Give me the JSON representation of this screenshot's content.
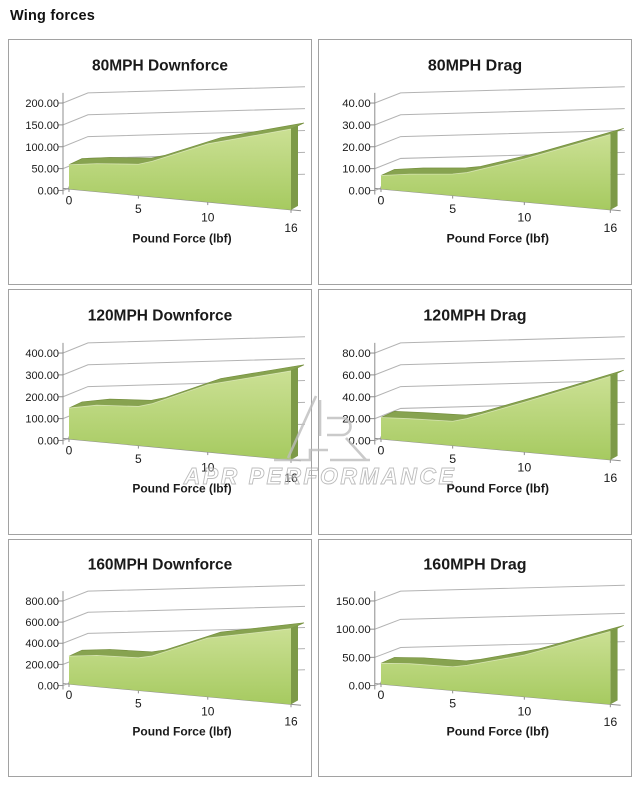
{
  "page": {
    "title": "Wing forces"
  },
  "watermark": {
    "text": "APR PERFORMANCE",
    "logo": "apr-performance-logo",
    "color": "#bdbdbd"
  },
  "colors": {
    "text": "#1a1a1a",
    "gridline": "#b3b3b3",
    "axis": "#8f8f8f",
    "panel_border": "#a2a2a2",
    "area_top": "#cbe094",
    "area_bottom": "#a6ca60",
    "ridge": "#87a350",
    "ridge_edge": "#76903f",
    "side": "#7d9a48",
    "crease": "#e3eec4",
    "watermark": "#b5b5b5"
  },
  "chart_data": [
    {
      "type": "area",
      "style": "3d-area",
      "grid": true,
      "legend": "none",
      "title": "80MPH Downforce",
      "xlabel": "Pound Force (lbf)",
      "xlim": [
        0,
        16
      ],
      "x_ticks": [
        0,
        5,
        10,
        16
      ],
      "ylim": [
        0,
        200
      ],
      "y_tick_step": 50,
      "y_tick_labels": [
        "0.00",
        "50.00",
        "100.00",
        "150.00",
        "200.00"
      ],
      "x": [
        0,
        2,
        5,
        6,
        10,
        16
      ],
      "values": [
        45,
        52,
        58,
        66,
        108,
        150
      ]
    },
    {
      "type": "area",
      "style": "3d-area",
      "grid": true,
      "legend": "none",
      "title": "80MPH Drag",
      "xlabel": "Pound Force (lbf)",
      "xlim": [
        0,
        16
      ],
      "x_ticks": [
        0,
        5,
        10,
        16
      ],
      "ylim": [
        0,
        40
      ],
      "y_tick_step": 10,
      "y_tick_labels": [
        "0.00",
        "10.00",
        "20.00",
        "30.00",
        "40.00"
      ],
      "x": [
        0,
        2,
        5,
        6,
        10,
        16
      ],
      "values": [
        5,
        6.5,
        8,
        9,
        16,
        28
      ]
    },
    {
      "type": "area",
      "style": "3d-area",
      "grid": true,
      "legend": "none",
      "title": "120MPH Downforce",
      "xlabel": "Pound Force (lbf)",
      "xlim": [
        0,
        16
      ],
      "x_ticks": [
        0,
        5,
        10,
        16
      ],
      "ylim": [
        0,
        400
      ],
      "y_tick_step": 100,
      "y_tick_labels": [
        "0.00",
        "100.00",
        "200.00",
        "300.00",
        "400.00"
      ],
      "x": [
        0,
        2,
        5,
        6,
        10,
        16
      ],
      "values": [
        115,
        135,
        145,
        160,
        250,
        330
      ]
    },
    {
      "type": "area",
      "style": "3d-area",
      "grid": true,
      "legend": "none",
      "title": "120MPH Drag",
      "xlabel": "Pound Force (lbf)",
      "xlim": [
        0,
        16
      ],
      "x_ticks": [
        0,
        5,
        10,
        16
      ],
      "ylim": [
        0,
        80
      ],
      "y_tick_step": 20,
      "y_tick_labels": [
        "0.00",
        "20.00",
        "40.00",
        "60.00",
        "80.00"
      ],
      "x": [
        0,
        2,
        5,
        6,
        10,
        16
      ],
      "values": [
        16,
        17,
        18,
        21,
        37,
        62
      ]
    },
    {
      "type": "area",
      "style": "3d-area",
      "grid": true,
      "legend": "none",
      "title": "160MPH Downforce",
      "xlabel": "Pound Force (lbf)",
      "xlim": [
        0,
        16
      ],
      "x_ticks": [
        0,
        5,
        10,
        16
      ],
      "ylim": [
        0,
        800
      ],
      "y_tick_step": 200,
      "y_tick_labels": [
        "0.00",
        "200.00",
        "400.00",
        "600.00",
        "800.00"
      ],
      "x": [
        0,
        2,
        5,
        6,
        10,
        16
      ],
      "values": [
        215,
        240,
        250,
        275,
        450,
        580
      ]
    },
    {
      "type": "area",
      "style": "3d-area",
      "grid": true,
      "legend": "none",
      "title": "160MPH Drag",
      "xlabel": "Pound Force (lbf)",
      "xlim": [
        0,
        16
      ],
      "x_ticks": [
        0,
        5,
        10,
        16
      ],
      "ylim": [
        0,
        150
      ],
      "y_tick_step": 50,
      "y_tick_labels": [
        "0.00",
        "50.00",
        "100.00",
        "150.00"
      ],
      "x": [
        0,
        2,
        5,
        6,
        10,
        16
      ],
      "values": [
        30,
        33,
        34,
        38,
        60,
        105
      ]
    }
  ]
}
